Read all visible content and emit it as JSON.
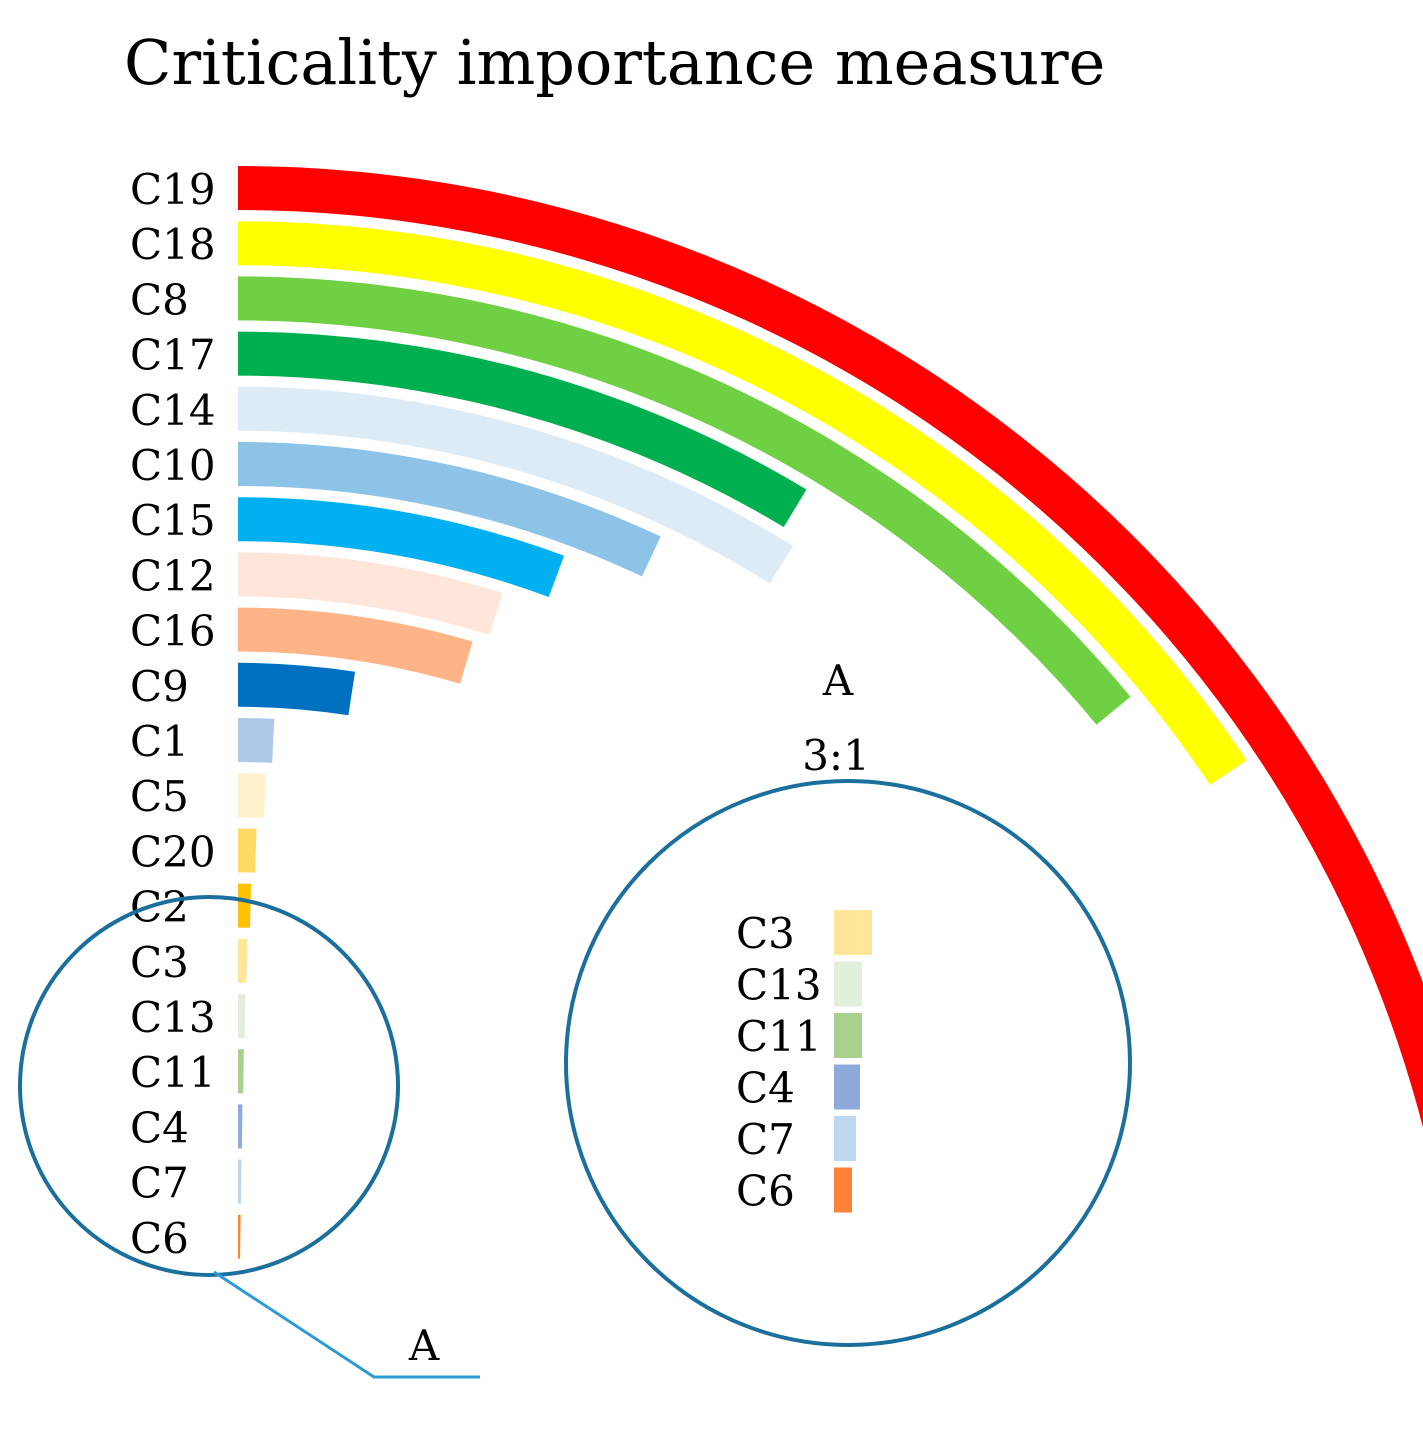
{
  "chart_data": {
    "type": "radial-bar",
    "title": "Criticality importance measure",
    "categories": [
      "C19",
      "C18",
      "C8",
      "C17",
      "C14",
      "C10",
      "C15",
      "C12",
      "C16",
      "C9",
      "C1",
      "C5",
      "C20",
      "C2",
      "C3",
      "C13",
      "C11",
      "C4",
      "C7",
      "C6"
    ],
    "values": [
      90,
      58,
      52,
      32,
      33,
      26,
      21,
      18,
      17,
      9,
      3,
      2.5,
      1.8,
      1.4,
      1.1,
      1.0,
      0.9,
      0.8,
      0.75,
      0.7
    ],
    "colors": [
      "#ff0000",
      "#ffff00",
      "#70d044",
      "#00b050",
      "#ddebf7",
      "#8dc3e6",
      "#00b0f0",
      "#ffe5da",
      "#ffb488",
      "#0070c0",
      "#adc8e8",
      "#fff1cc",
      "#ffd966",
      "#ffc000",
      "#ffe699",
      "#e2efda",
      "#a9d08e",
      "#8eaadc",
      "#bdd7ee",
      "#ff8135"
    ],
    "value_scale_max": 100
  },
  "zoom": {
    "label_a": "A",
    "scale_label": "3:1",
    "categories": [
      "C3",
      "C13",
      "C11",
      "C4",
      "C7",
      "C6"
    ],
    "colors": [
      "#ffe699",
      "#e2efda",
      "#a9d08e",
      "#8eaadc",
      "#bdd7ee",
      "#ff8135"
    ]
  }
}
